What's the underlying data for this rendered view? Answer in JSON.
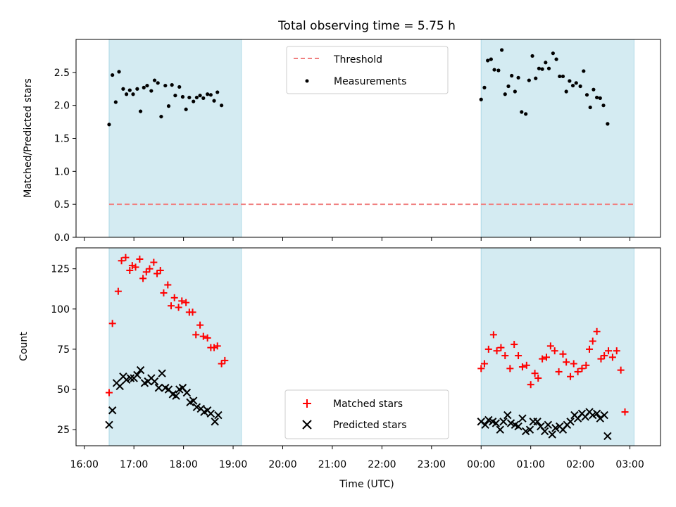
{
  "chart_data": [
    {
      "type": "scatter",
      "title": "Total observing time = 5.75 h",
      "xlabel": "",
      "ylabel": "Matched/Predicted stars",
      "xlim": [
        "16:00",
        "03:30"
      ],
      "ylim": [
        0,
        3.0
      ],
      "yticks": [
        "0.0",
        "0.5",
        "1.0",
        "1.5",
        "2.0",
        "2.5"
      ],
      "shaded_spans": [
        [
          "16:30",
          "19:10"
        ],
        [
          "00:00",
          "03:05"
        ]
      ],
      "shade_color": "#add8e6",
      "threshold": {
        "name": "Threshold",
        "y": 0.5,
        "color": "#f08080",
        "style": "dashed"
      },
      "legend": {
        "position": "top-center",
        "entries": [
          "Threshold",
          "Measurements"
        ]
      },
      "series": [
        {
          "name": "Measurements",
          "marker": "dot",
          "color": "#000000",
          "points": [
            [
              "16:30",
              1.71
            ],
            [
              "16:34",
              2.46
            ],
            [
              "16:38",
              2.05
            ],
            [
              "16:42",
              2.51
            ],
            [
              "16:47",
              2.25
            ],
            [
              "16:51",
              2.17
            ],
            [
              "16:55",
              2.23
            ],
            [
              "16:59",
              2.17
            ],
            [
              "17:04",
              2.25
            ],
            [
              "17:08",
              1.91
            ],
            [
              "17:12",
              2.27
            ],
            [
              "17:16",
              2.3
            ],
            [
              "17:21",
              2.22
            ],
            [
              "17:25",
              2.38
            ],
            [
              "17:29",
              2.34
            ],
            [
              "17:33",
              1.83
            ],
            [
              "17:38",
              2.3
            ],
            [
              "17:42",
              1.99
            ],
            [
              "17:46",
              2.31
            ],
            [
              "17:50",
              2.15
            ],
            [
              "17:55",
              2.28
            ],
            [
              "17:59",
              2.13
            ],
            [
              "18:03",
              1.94
            ],
            [
              "18:07",
              2.12
            ],
            [
              "18:12",
              2.06
            ],
            [
              "18:16",
              2.12
            ],
            [
              "18:20",
              2.15
            ],
            [
              "18:24",
              2.11
            ],
            [
              "18:29",
              2.17
            ],
            [
              "18:33",
              2.16
            ],
            [
              "18:37",
              2.07
            ],
            [
              "18:41",
              2.2
            ],
            [
              "18:46",
              2.0
            ],
            [
              "00:00",
              2.09
            ],
            [
              "00:04",
              2.27
            ],
            [
              "00:08",
              2.68
            ],
            [
              "00:12",
              2.7
            ],
            [
              "00:16",
              2.54
            ],
            [
              "00:21",
              2.53
            ],
            [
              "00:25",
              2.84
            ],
            [
              "00:29",
              2.17
            ],
            [
              "00:33",
              2.29
            ],
            [
              "00:37",
              2.45
            ],
            [
              "00:41",
              2.21
            ],
            [
              "00:45",
              2.42
            ],
            [
              "00:49",
              1.9
            ],
            [
              "00:54",
              1.87
            ],
            [
              "00:58",
              2.38
            ],
            [
              "01:02",
              2.75
            ],
            [
              "01:06",
              2.41
            ],
            [
              "01:10",
              2.56
            ],
            [
              "01:14",
              2.55
            ],
            [
              "01:18",
              2.65
            ],
            [
              "01:22",
              2.56
            ],
            [
              "01:27",
              2.79
            ],
            [
              "01:31",
              2.7
            ],
            [
              "01:35",
              2.44
            ],
            [
              "01:39",
              2.44
            ],
            [
              "01:43",
              2.21
            ],
            [
              "01:47",
              2.37
            ],
            [
              "01:51",
              2.3
            ],
            [
              "01:55",
              2.34
            ],
            [
              "02:00",
              2.29
            ],
            [
              "02:04",
              2.52
            ],
            [
              "02:08",
              2.16
            ],
            [
              "02:12",
              1.97
            ],
            [
              "02:16",
              2.24
            ],
            [
              "02:20",
              2.12
            ],
            [
              "02:24",
              2.11
            ],
            [
              "02:28",
              2.0
            ],
            [
              "02:33",
              1.72
            ]
          ]
        }
      ]
    },
    {
      "type": "scatter",
      "title": "",
      "xlabel": "Time (UTC)",
      "ylabel": "Count",
      "xlim": [
        "16:00",
        "03:30"
      ],
      "ylim": [
        15,
        138
      ],
      "yticks": [
        "25",
        "50",
        "75",
        "100",
        "125"
      ],
      "xticks": [
        "16:00",
        "17:00",
        "18:00",
        "19:00",
        "20:00",
        "21:00",
        "22:00",
        "23:00",
        "00:00",
        "01:00",
        "02:00",
        "03:00"
      ],
      "shaded_spans": [
        [
          "16:30",
          "19:10"
        ],
        [
          "00:00",
          "03:05"
        ]
      ],
      "shade_color": "#add8e6",
      "legend": {
        "position": "bottom-center",
        "entries": [
          "Matched stars",
          "Predicted stars"
        ]
      },
      "series": [
        {
          "name": "Matched stars",
          "marker": "plus",
          "color": "#ff0000",
          "points": [
            [
              "16:30",
              48
            ],
            [
              "16:34",
              91
            ],
            [
              "16:41",
              111
            ],
            [
              "16:45",
              130
            ],
            [
              "16:50",
              132
            ],
            [
              "16:55",
              124
            ],
            [
              "16:58",
              127
            ],
            [
              "17:02",
              126
            ],
            [
              "17:07",
              131
            ],
            [
              "17:11",
              119
            ],
            [
              "17:15",
              123
            ],
            [
              "17:19",
              125
            ],
            [
              "17:24",
              129
            ],
            [
              "17:28",
              122
            ],
            [
              "17:32",
              124
            ],
            [
              "17:36",
              110
            ],
            [
              "17:41",
              115
            ],
            [
              "17:45",
              102
            ],
            [
              "17:49",
              107
            ],
            [
              "17:54",
              101
            ],
            [
              "17:58",
              105
            ],
            [
              "18:03",
              104
            ],
            [
              "18:07",
              98
            ],
            [
              "18:11",
              98
            ],
            [
              "18:15",
              84
            ],
            [
              "18:20",
              90
            ],
            [
              "18:24",
              83
            ],
            [
              "18:29",
              82
            ],
            [
              "18:33",
              76
            ],
            [
              "18:37",
              76
            ],
            [
              "18:41",
              77
            ],
            [
              "18:46",
              66
            ],
            [
              "18:50",
              68
            ],
            [
              "00:00",
              63
            ],
            [
              "00:04",
              66
            ],
            [
              "00:09",
              75
            ],
            [
              "00:15",
              84
            ],
            [
              "00:19",
              74
            ],
            [
              "00:24",
              76
            ],
            [
              "00:29",
              71
            ],
            [
              "00:35",
              63
            ],
            [
              "00:40",
              78
            ],
            [
              "00:45",
              71
            ],
            [
              "00:50",
              64
            ],
            [
              "00:55",
              65
            ],
            [
              "01:00",
              53
            ],
            [
              "01:05",
              60
            ],
            [
              "01:09",
              57
            ],
            [
              "01:14",
              69
            ],
            [
              "01:19",
              70
            ],
            [
              "01:24",
              77
            ],
            [
              "01:29",
              74
            ],
            [
              "01:34",
              61
            ],
            [
              "01:39",
              72
            ],
            [
              "01:43",
              67
            ],
            [
              "01:48",
              58
            ],
            [
              "01:52",
              66
            ],
            [
              "01:57",
              61
            ],
            [
              "02:02",
              63
            ],
            [
              "02:07",
              65
            ],
            [
              "02:11",
              75
            ],
            [
              "02:15",
              80
            ],
            [
              "02:20",
              86
            ],
            [
              "02:25",
              69
            ],
            [
              "02:29",
              71
            ],
            [
              "02:34",
              74
            ],
            [
              "02:39",
              70
            ],
            [
              "02:44",
              74
            ],
            [
              "02:49",
              62
            ],
            [
              "02:54",
              36
            ]
          ]
        },
        {
          "name": "Predicted stars",
          "marker": "x",
          "color": "#000000",
          "points": [
            [
              "16:30",
              28
            ],
            [
              "16:34",
              37
            ],
            [
              "16:39",
              54
            ],
            [
              "16:43",
              52
            ],
            [
              "16:47",
              58
            ],
            [
              "16:51",
              56
            ],
            [
              "16:56",
              57
            ],
            [
              "17:00",
              57
            ],
            [
              "17:04",
              59
            ],
            [
              "17:08",
              62
            ],
            [
              "17:13",
              54
            ],
            [
              "17:17",
              55
            ],
            [
              "17:21",
              57
            ],
            [
              "17:25",
              55
            ],
            [
              "17:30",
              51
            ],
            [
              "17:34",
              60
            ],
            [
              "17:38",
              51
            ],
            [
              "17:42",
              50
            ],
            [
              "17:47",
              47
            ],
            [
              "17:51",
              46
            ],
            [
              "17:55",
              50
            ],
            [
              "17:59",
              51
            ],
            [
              "18:04",
              48
            ],
            [
              "18:08",
              42
            ],
            [
              "18:12",
              43
            ],
            [
              "18:16",
              39
            ],
            [
              "18:21",
              38
            ],
            [
              "18:25",
              36
            ],
            [
              "18:29",
              37
            ],
            [
              "18:33",
              35
            ],
            [
              "18:38",
              30
            ],
            [
              "18:42",
              34
            ],
            [
              "00:00",
              30
            ],
            [
              "00:05",
              28
            ],
            [
              "00:09",
              31
            ],
            [
              "00:14",
              30
            ],
            [
              "00:18",
              29
            ],
            [
              "00:23",
              25
            ],
            [
              "00:27",
              30
            ],
            [
              "00:32",
              34
            ],
            [
              "00:36",
              29
            ],
            [
              "00:41",
              28
            ],
            [
              "00:45",
              27
            ],
            [
              "00:50",
              32
            ],
            [
              "00:54",
              24
            ],
            [
              "00:59",
              25
            ],
            [
              "01:03",
              30
            ],
            [
              "01:08",
              30
            ],
            [
              "01:12",
              27
            ],
            [
              "01:17",
              24
            ],
            [
              "01:21",
              28
            ],
            [
              "01:26",
              22
            ],
            [
              "01:30",
              26
            ],
            [
              "01:35",
              27
            ],
            [
              "01:39",
              25
            ],
            [
              "01:44",
              28
            ],
            [
              "01:48",
              30
            ],
            [
              "01:53",
              34
            ],
            [
              "01:57",
              32
            ],
            [
              "02:02",
              35
            ],
            [
              "02:06",
              33
            ],
            [
              "02:11",
              36
            ],
            [
              "02:15",
              34
            ],
            [
              "02:20",
              35
            ],
            [
              "02:24",
              32
            ],
            [
              "02:29",
              34
            ],
            [
              "02:33",
              21
            ]
          ]
        }
      ]
    }
  ]
}
